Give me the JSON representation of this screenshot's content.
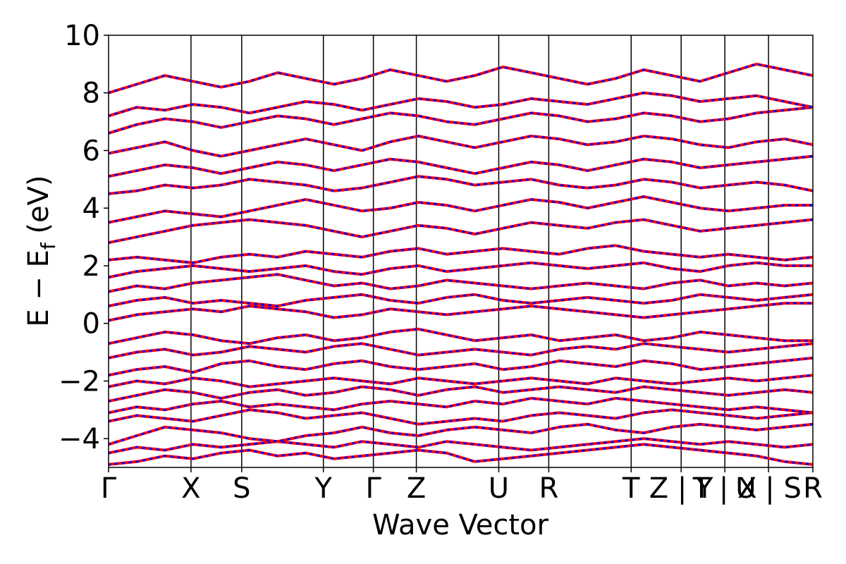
{
  "chart_data": {
    "type": "line",
    "title": "",
    "xlabel": "Wave Vector",
    "ylabel": "E − E_f (eV)",
    "ylabel_main": "E − E",
    "ylabel_sub": "f",
    "ylabel_tail": "(eV)",
    "xlim": [
      0,
      1
    ],
    "ylim": [
      -5,
      10
    ],
    "yticks": [
      -4,
      -2,
      0,
      2,
      4,
      6,
      8,
      10
    ],
    "ytick_labels": [
      "−4",
      "−2",
      "0",
      "2",
      "4",
      "6",
      "8",
      "10"
    ],
    "grid": false,
    "k_points": [
      {
        "label": "Γ",
        "x": 0.0
      },
      {
        "label": "X",
        "x": 0.117
      },
      {
        "label": "S",
        "x": 0.189
      },
      {
        "label": "Y",
        "x": 0.305
      },
      {
        "label": "Γ",
        "x": 0.376
      },
      {
        "label": "Z",
        "x": 0.437
      },
      {
        "label": "U",
        "x": 0.554
      },
      {
        "label": "R",
        "x": 0.625
      },
      {
        "label": "T",
        "x": 0.742
      },
      {
        "label": "Z | Y",
        "x": 0.813
      },
      {
        "label": "T | X",
        "x": 0.875
      },
      {
        "label": "U | S",
        "x": 0.937
      },
      {
        "label": "R",
        "x": 1.0
      }
    ],
    "series_colors": {
      "primary": "#ff0000",
      "secondary": "#0000ff"
    },
    "series": [
      {
        "style": "red-solid",
        "color": "#ff0000"
      },
      {
        "style": "blue-dotted",
        "color": "#0000ff"
      }
    ],
    "bands": [
      [
        -4.9,
        -4.8,
        -4.6,
        -4.7,
        -4.5,
        -4.4,
        -4.6,
        -4.5,
        -4.7,
        -4.6,
        -4.5,
        -4.4,
        -4.5,
        -4.8,
        -4.7,
        -4.6,
        -4.5,
        -4.4,
        -4.3,
        -4.2,
        -4.3,
        -4.4,
        -4.5,
        -4.6,
        -4.8,
        -4.9
      ],
      [
        -4.5,
        -4.3,
        -4.4,
        -4.2,
        -4.3,
        -4.2,
        -4.1,
        -4.2,
        -4.3,
        -4.1,
        -4.2,
        -4.3,
        -4.1,
        -4.2,
        -4.3,
        -4.4,
        -4.3,
        -4.2,
        -4.1,
        -4.0,
        -4.1,
        -4.2,
        -4.1,
        -4.2,
        -4.3,
        -4.2
      ],
      [
        -4.2,
        -3.9,
        -3.6,
        -3.7,
        -3.8,
        -4.0,
        -4.1,
        -3.9,
        -3.8,
        -3.6,
        -3.8,
        -3.9,
        -3.7,
        -3.6,
        -3.7,
        -3.8,
        -3.6,
        -3.5,
        -3.7,
        -3.8,
        -3.6,
        -3.5,
        -3.6,
        -3.7,
        -3.6,
        -3.5
      ],
      [
        -3.4,
        -3.2,
        -3.3,
        -3.4,
        -3.2,
        -3.0,
        -3.1,
        -3.3,
        -3.2,
        -3.1,
        -3.3,
        -3.5,
        -3.4,
        -3.3,
        -3.4,
        -3.2,
        -3.1,
        -3.2,
        -3.3,
        -3.1,
        -3.0,
        -3.1,
        -3.2,
        -3.3,
        -3.2,
        -3.1
      ],
      [
        -3.1,
        -2.9,
        -3.0,
        -2.8,
        -2.7,
        -2.9,
        -2.8,
        -2.9,
        -3.0,
        -2.8,
        -2.7,
        -2.8,
        -2.9,
        -2.7,
        -2.8,
        -2.6,
        -2.7,
        -2.8,
        -2.6,
        -2.7,
        -2.8,
        -2.9,
        -3.0,
        -2.9,
        -3.0,
        -3.1
      ],
      [
        -2.7,
        -2.5,
        -2.3,
        -2.4,
        -2.6,
        -2.4,
        -2.3,
        -2.5,
        -2.4,
        -2.2,
        -2.3,
        -2.5,
        -2.3,
        -2.2,
        -2.4,
        -2.3,
        -2.2,
        -2.3,
        -2.4,
        -2.2,
        -2.3,
        -2.4,
        -2.5,
        -2.4,
        -2.3,
        -2.4
      ],
      [
        -2.2,
        -2.0,
        -2.1,
        -1.9,
        -2.0,
        -2.2,
        -2.1,
        -2.0,
        -1.9,
        -2.0,
        -2.1,
        -1.9,
        -2.0,
        -2.1,
        -2.0,
        -1.9,
        -2.0,
        -2.1,
        -1.9,
        -2.0,
        -2.1,
        -2.0,
        -1.9,
        -2.0,
        -1.9,
        -1.8
      ],
      [
        -1.8,
        -1.6,
        -1.5,
        -1.7,
        -1.4,
        -1.3,
        -1.5,
        -1.6,
        -1.4,
        -1.3,
        -1.5,
        -1.6,
        -1.5,
        -1.4,
        -1.6,
        -1.5,
        -1.3,
        -1.4,
        -1.5,
        -1.3,
        -1.4,
        -1.6,
        -1.5,
        -1.4,
        -1.3,
        -1.2
      ],
      [
        -1.2,
        -1.0,
        -0.9,
        -1.1,
        -1.0,
        -0.8,
        -0.9,
        -1.0,
        -0.8,
        -0.7,
        -0.9,
        -1.1,
        -1.0,
        -0.9,
        -1.0,
        -1.1,
        -0.9,
        -0.8,
        -0.9,
        -0.7,
        -0.8,
        -0.9,
        -1.0,
        -0.9,
        -0.8,
        -0.7
      ],
      [
        -0.7,
        -0.5,
        -0.3,
        -0.4,
        -0.6,
        -0.7,
        -0.5,
        -0.4,
        -0.6,
        -0.5,
        -0.3,
        -0.2,
        -0.4,
        -0.6,
        -0.5,
        -0.4,
        -0.6,
        -0.5,
        -0.4,
        -0.6,
        -0.5,
        -0.3,
        -0.4,
        -0.5,
        -0.6,
        -0.6
      ],
      [
        0.1,
        0.3,
        0.4,
        0.5,
        0.4,
        0.6,
        0.5,
        0.4,
        0.2,
        0.3,
        0.5,
        0.4,
        0.3,
        0.4,
        0.5,
        0.6,
        0.5,
        0.4,
        0.3,
        0.2,
        0.3,
        0.4,
        0.5,
        0.6,
        0.7,
        0.7
      ],
      [
        0.6,
        0.8,
        0.9,
        0.7,
        0.8,
        0.7,
        0.6,
        0.8,
        0.9,
        1.0,
        0.8,
        0.7,
        0.9,
        1.0,
        0.8,
        0.7,
        0.8,
        0.9,
        0.8,
        0.7,
        0.8,
        1.0,
        0.9,
        0.8,
        0.9,
        1.0
      ],
      [
        1.1,
        1.3,
        1.2,
        1.4,
        1.5,
        1.6,
        1.7,
        1.5,
        1.3,
        1.4,
        1.2,
        1.3,
        1.5,
        1.4,
        1.3,
        1.2,
        1.3,
        1.4,
        1.3,
        1.2,
        1.4,
        1.5,
        1.3,
        1.4,
        1.3,
        1.4
      ],
      [
        1.6,
        1.8,
        1.9,
        2.0,
        1.9,
        1.8,
        1.9,
        2.0,
        1.8,
        1.7,
        1.9,
        2.0,
        1.8,
        1.9,
        2.0,
        2.1,
        2.0,
        1.9,
        2.0,
        2.1,
        1.9,
        1.8,
        2.0,
        2.1,
        2.0,
        2.0
      ],
      [
        2.2,
        2.3,
        2.2,
        2.1,
        2.3,
        2.4,
        2.3,
        2.5,
        2.4,
        2.3,
        2.5,
        2.6,
        2.4,
        2.5,
        2.6,
        2.5,
        2.4,
        2.6,
        2.7,
        2.5,
        2.4,
        2.3,
        2.4,
        2.3,
        2.2,
        2.3
      ],
      [
        2.8,
        3.0,
        3.2,
        3.4,
        3.5,
        3.6,
        3.5,
        3.4,
        3.2,
        3.0,
        3.2,
        3.4,
        3.3,
        3.1,
        3.3,
        3.5,
        3.4,
        3.3,
        3.5,
        3.6,
        3.4,
        3.2,
        3.3,
        3.4,
        3.5,
        3.6
      ],
      [
        3.5,
        3.7,
        3.9,
        3.8,
        3.7,
        3.9,
        4.1,
        4.3,
        4.1,
        3.9,
        4.0,
        4.2,
        4.1,
        3.9,
        4.1,
        4.3,
        4.2,
        4.0,
        4.2,
        4.4,
        4.2,
        4.0,
        3.9,
        4.0,
        4.1,
        4.1
      ],
      [
        4.5,
        4.6,
        4.8,
        4.7,
        4.8,
        5.0,
        4.9,
        4.8,
        4.6,
        4.7,
        4.9,
        5.1,
        5.0,
        4.8,
        4.9,
        5.0,
        4.8,
        4.7,
        4.8,
        5.0,
        4.9,
        4.7,
        4.8,
        4.9,
        4.8,
        4.6
      ],
      [
        5.1,
        5.3,
        5.5,
        5.4,
        5.2,
        5.4,
        5.6,
        5.5,
        5.3,
        5.5,
        5.7,
        5.6,
        5.4,
        5.2,
        5.4,
        5.6,
        5.5,
        5.3,
        5.5,
        5.7,
        5.6,
        5.4,
        5.5,
        5.6,
        5.7,
        5.8
      ],
      [
        5.9,
        6.1,
        6.3,
        6.0,
        5.8,
        6.0,
        6.2,
        6.4,
        6.2,
        6.0,
        6.3,
        6.5,
        6.3,
        6.1,
        6.3,
        6.5,
        6.4,
        6.2,
        6.3,
        6.5,
        6.4,
        6.2,
        6.1,
        6.3,
        6.4,
        6.2
      ],
      [
        6.6,
        6.9,
        7.1,
        7.0,
        6.8,
        7.0,
        7.2,
        7.1,
        6.9,
        7.1,
        7.3,
        7.2,
        7.0,
        6.9,
        7.1,
        7.3,
        7.2,
        7.0,
        7.1,
        7.3,
        7.2,
        7.0,
        7.1,
        7.3,
        7.4,
        7.5
      ],
      [
        7.2,
        7.5,
        7.4,
        7.6,
        7.5,
        7.3,
        7.5,
        7.7,
        7.6,
        7.4,
        7.6,
        7.8,
        7.7,
        7.5,
        7.6,
        7.8,
        7.7,
        7.6,
        7.8,
        8.0,
        7.9,
        7.7,
        7.8,
        7.9,
        7.7,
        7.5
      ],
      [
        8.0,
        8.3,
        8.6,
        8.4,
        8.2,
        8.4,
        8.7,
        8.5,
        8.3,
        8.5,
        8.8,
        8.6,
        8.4,
        8.6,
        8.9,
        8.7,
        8.5,
        8.3,
        8.5,
        8.8,
        8.6,
        8.4,
        8.7,
        9.0,
        8.8,
        8.6
      ]
    ]
  }
}
